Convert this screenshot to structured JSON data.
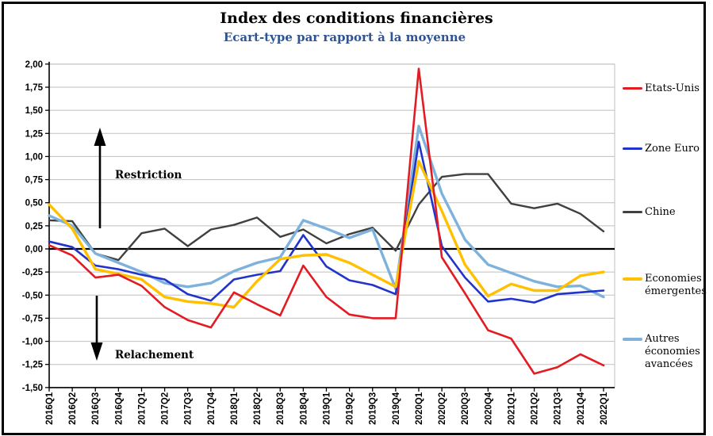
{
  "header": {
    "title": "Index des conditions financières",
    "subtitle": "Ecart-type par rapport à la moyenne"
  },
  "annotations": {
    "up_label": "Restriction",
    "down_label": "Relachement"
  },
  "colors": {
    "etats_unis": "#E31B23",
    "zone_euro": "#2133CB",
    "chine": "#404040",
    "economies_emergentes": "#FFC000",
    "autres_economies_avancees": "#7EB2DC",
    "subtitle_blue": "#2F5496",
    "gridline": "#BFBFBF",
    "zero_line": "#000000"
  },
  "legend": {
    "position": "right",
    "entries": [
      {
        "label": "Etats-Unis",
        "lines": [
          "Etats-Unis"
        ],
        "color": "#E31B23",
        "thickness": 3
      },
      {
        "label": "Zone Euro",
        "lines": [
          "Zone Euro"
        ],
        "color": "#2133CB",
        "thickness": 3
      },
      {
        "label": "Chine",
        "lines": [
          "Chine"
        ],
        "color": "#404040",
        "thickness": 3
      },
      {
        "label": "Economies émergentes",
        "lines": [
          "Economies",
          "émergentes"
        ],
        "color": "#FFC000",
        "thickness": 4
      },
      {
        "label": "Autres économies avancées",
        "lines": [
          "Autres",
          "économies",
          "avancées"
        ],
        "color": "#7EB2DC",
        "thickness": 4
      }
    ]
  },
  "chart_data": {
    "type": "line",
    "title": "Index des conditions financières",
    "subtitle": "Ecart-type par rapport à la moyenne",
    "xlabel": "",
    "ylabel": "Ecart-type par rapport à la moyenne",
    "ylim": [
      -1.5,
      2.0
    ],
    "y_tick_step": 0.25,
    "grid": true,
    "legend_position": "right",
    "y_ticks": {
      "labels": [
        "2,00",
        "1,75",
        "1,50",
        "1,25",
        "1,00",
        "0,75",
        "0,50",
        "0,25",
        "0,00",
        "-0,25",
        "-0,50",
        "-0,75",
        "-1,00",
        "-1,25",
        "-1,50"
      ],
      "values": [
        2.0,
        1.75,
        1.5,
        1.25,
        1.0,
        0.75,
        0.5,
        0.25,
        0.0,
        -0.25,
        -0.5,
        -0.75,
        -1.0,
        -1.25,
        -1.5
      ]
    },
    "categories": [
      "2016Q1",
      "2016Q2",
      "2016Q3",
      "2016Q4",
      "2017Q1",
      "2017Q2",
      "2017Q3",
      "2017Q4",
      "2018Q1",
      "2018Q2",
      "2018Q3",
      "2018Q4",
      "2019Q1",
      "2019Q2",
      "2019Q3",
      "2019Q4",
      "2020Q1",
      "2020Q2",
      "2020Q3",
      "2020Q4",
      "2021Q1",
      "2021Q2",
      "2021Q3",
      "2021Q4",
      "2022Q1"
    ],
    "series": [
      {
        "name": "Etats-Unis",
        "color": "#E31B23",
        "values": [
          0.04,
          -0.07,
          -0.31,
          -0.28,
          -0.4,
          -0.63,
          -0.77,
          -0.85,
          -0.47,
          -0.6,
          -0.72,
          -0.18,
          -0.52,
          -0.71,
          -0.75,
          -0.75,
          1.95,
          -0.09,
          -0.48,
          -0.88,
          -0.97,
          -1.35,
          -1.28,
          -1.14,
          -1.26
        ]
      },
      {
        "name": "Zone Euro",
        "color": "#2133CB",
        "values": [
          0.08,
          0.02,
          -0.18,
          -0.22,
          -0.28,
          -0.33,
          -0.49,
          -0.56,
          -0.33,
          -0.28,
          -0.24,
          0.15,
          -0.19,
          -0.34,
          -0.39,
          -0.49,
          1.16,
          0.03,
          -0.31,
          -0.57,
          -0.54,
          -0.58,
          -0.49,
          -0.47,
          -0.45
        ]
      },
      {
        "name": "Chine",
        "color": "#404040",
        "values": [
          0.31,
          0.3,
          -0.05,
          -0.12,
          0.17,
          0.22,
          0.03,
          0.21,
          0.26,
          0.34,
          0.13,
          0.21,
          0.06,
          0.16,
          0.23,
          -0.02,
          0.48,
          0.78,
          0.81,
          0.81,
          0.49,
          0.44,
          0.49,
          0.38,
          0.19
        ]
      },
      {
        "name": "Economies émergentes",
        "color": "#FFC000",
        "values": [
          0.48,
          0.22,
          -0.22,
          -0.27,
          -0.33,
          -0.52,
          -0.57,
          -0.59,
          -0.63,
          -0.35,
          -0.11,
          -0.07,
          -0.06,
          -0.15,
          -0.28,
          -0.41,
          0.95,
          0.41,
          -0.17,
          -0.51,
          -0.38,
          -0.45,
          -0.45,
          -0.29,
          -0.25
        ]
      },
      {
        "name": "Autres économies avancées",
        "color": "#7EB2DC",
        "values": [
          0.36,
          0.25,
          -0.05,
          -0.15,
          -0.25,
          -0.37,
          -0.41,
          -0.37,
          -0.24,
          -0.15,
          -0.09,
          0.31,
          0.22,
          0.12,
          0.21,
          -0.43,
          1.33,
          0.6,
          0.1,
          -0.17,
          -0.26,
          -0.35,
          -0.41,
          -0.4,
          -0.52
        ]
      }
    ]
  }
}
